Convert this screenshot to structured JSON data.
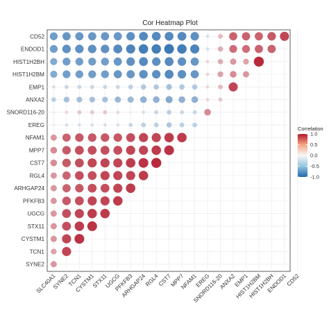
{
  "chart_data": {
    "type": "heatmap",
    "title": "Cor Heatmap Plot",
    "xlabel": "",
    "ylabel": "",
    "variables": [
      "SLC40A1",
      "SYNE2",
      "TCN1",
      "CYSTM1",
      "STX11",
      "UGCG",
      "PFKFB3",
      "ARHGAP24",
      "RGL4",
      "CST7",
      "MPP7",
      "NFAM1",
      "EREG",
      "SNORD116-20",
      "ANXA2",
      "EMP1",
      "HIST1H2BM",
      "HIST1H2BH",
      "ENDOD1",
      "CD52"
    ],
    "y_order_top_to_bottom": [
      "CD52",
      "ENDOD1",
      "HIST1H2BH",
      "HIST1H2BM",
      "EMP1",
      "ANXA2",
      "SNORD116-20",
      "EREG",
      "NFAM1",
      "MPP7",
      "CST7",
      "RGL4",
      "ARHGAP24",
      "PFKFB3",
      "UGCG",
      "STX11",
      "CYSTM1",
      "TCN1",
      "SYNE2"
    ],
    "rows": [
      {
        "name": "CD52",
        "values": [
          -0.55,
          -0.6,
          -0.6,
          -0.6,
          -0.6,
          -0.6,
          -0.65,
          -0.7,
          -0.7,
          -0.7,
          -0.7,
          -0.65,
          -0.1,
          0.2,
          0.6,
          0.6,
          0.6,
          0.65,
          0.75
        ]
      },
      {
        "name": "ENDOD1",
        "values": [
          -0.55,
          -0.65,
          -0.65,
          -0.65,
          -0.65,
          -0.7,
          -0.75,
          -0.8,
          -0.8,
          -0.85,
          -0.8,
          -0.75,
          -0.1,
          0.25,
          0.55,
          0.55,
          0.6,
          0.6
        ]
      },
      {
        "name": "HIST1H2BH",
        "values": [
          -0.45,
          -0.55,
          -0.55,
          -0.55,
          -0.55,
          -0.6,
          -0.65,
          -0.7,
          -0.65,
          -0.7,
          -0.65,
          -0.6,
          0.1,
          0.25,
          0.35,
          0.3,
          0.9
        ]
      },
      {
        "name": "HIST1H2BM",
        "values": [
          -0.45,
          -0.55,
          -0.55,
          -0.55,
          -0.55,
          -0.6,
          -0.6,
          -0.65,
          -0.65,
          -0.7,
          -0.65,
          -0.6,
          0.1,
          0.3,
          0.4,
          0.35
        ]
      },
      {
        "name": "EMP1",
        "values": [
          -0.1,
          -0.15,
          -0.15,
          -0.15,
          -0.15,
          -0.15,
          -0.2,
          -0.25,
          -0.25,
          -0.3,
          -0.25,
          -0.25,
          0.1,
          0.2,
          0.75
        ]
      },
      {
        "name": "ANXA2",
        "values": [
          -0.2,
          -0.3,
          -0.3,
          -0.3,
          -0.3,
          -0.35,
          -0.35,
          -0.4,
          -0.4,
          -0.45,
          -0.4,
          -0.4,
          0.1,
          0.15
        ]
      },
      {
        "name": "SNORD116-20",
        "values": [
          -0.05,
          0.1,
          0.15,
          0.15,
          0.15,
          0.1,
          0.05,
          -0.1,
          -0.15,
          -0.2,
          -0.15,
          -0.15,
          0.4
        ]
      },
      {
        "name": "EREG",
        "values": [
          -0.05,
          -0.1,
          -0.1,
          -0.1,
          -0.1,
          -0.1,
          -0.15,
          -0.2,
          -0.2,
          -0.25,
          -0.2,
          -0.2
        ]
      },
      {
        "name": "NFAM1",
        "values": [
          0.35,
          0.6,
          0.65,
          0.65,
          0.65,
          0.65,
          0.7,
          0.75,
          0.75,
          0.8,
          0.8
        ]
      },
      {
        "name": "MPP7",
        "values": [
          0.4,
          0.65,
          0.7,
          0.7,
          0.7,
          0.7,
          0.75,
          0.75,
          0.8,
          0.85
        ]
      },
      {
        "name": "CST7",
        "values": [
          0.4,
          0.65,
          0.7,
          0.75,
          0.75,
          0.75,
          0.8,
          0.85,
          0.9
        ]
      },
      {
        "name": "RGL4",
        "values": [
          0.35,
          0.6,
          0.7,
          0.7,
          0.75,
          0.75,
          0.75,
          0.8
        ]
      },
      {
        "name": "ARHGAP24",
        "values": [
          0.35,
          0.6,
          0.65,
          0.7,
          0.7,
          0.75,
          0.8
        ]
      },
      {
        "name": "PFKFB3",
        "values": [
          0.35,
          0.65,
          0.7,
          0.75,
          0.75,
          0.8
        ]
      },
      {
        "name": "UGCG",
        "values": [
          0.35,
          0.7,
          0.75,
          0.8,
          0.8
        ]
      },
      {
        "name": "STX11",
        "values": [
          0.35,
          0.7,
          0.8,
          0.85
        ]
      },
      {
        "name": "CYSTM1",
        "values": [
          0.35,
          0.75,
          0.85
        ]
      },
      {
        "name": "TCN1",
        "values": [
          0.3,
          0.75
        ]
      },
      {
        "name": "SYNE2",
        "values": [
          0.35
        ]
      }
    ],
    "legend": {
      "title": "Correlation",
      "ticks": [
        1.0,
        0.5,
        0.0,
        -0.5,
        -1.0
      ],
      "tick_labels": [
        "1.0",
        "0.5",
        "0.0",
        "-0.5",
        "-1.0"
      ],
      "placement": "right",
      "colors": {
        "high": "#b2182b",
        "mid": "#f7f7f7",
        "low": "#2166ac"
      }
    },
    "grid": true
  }
}
